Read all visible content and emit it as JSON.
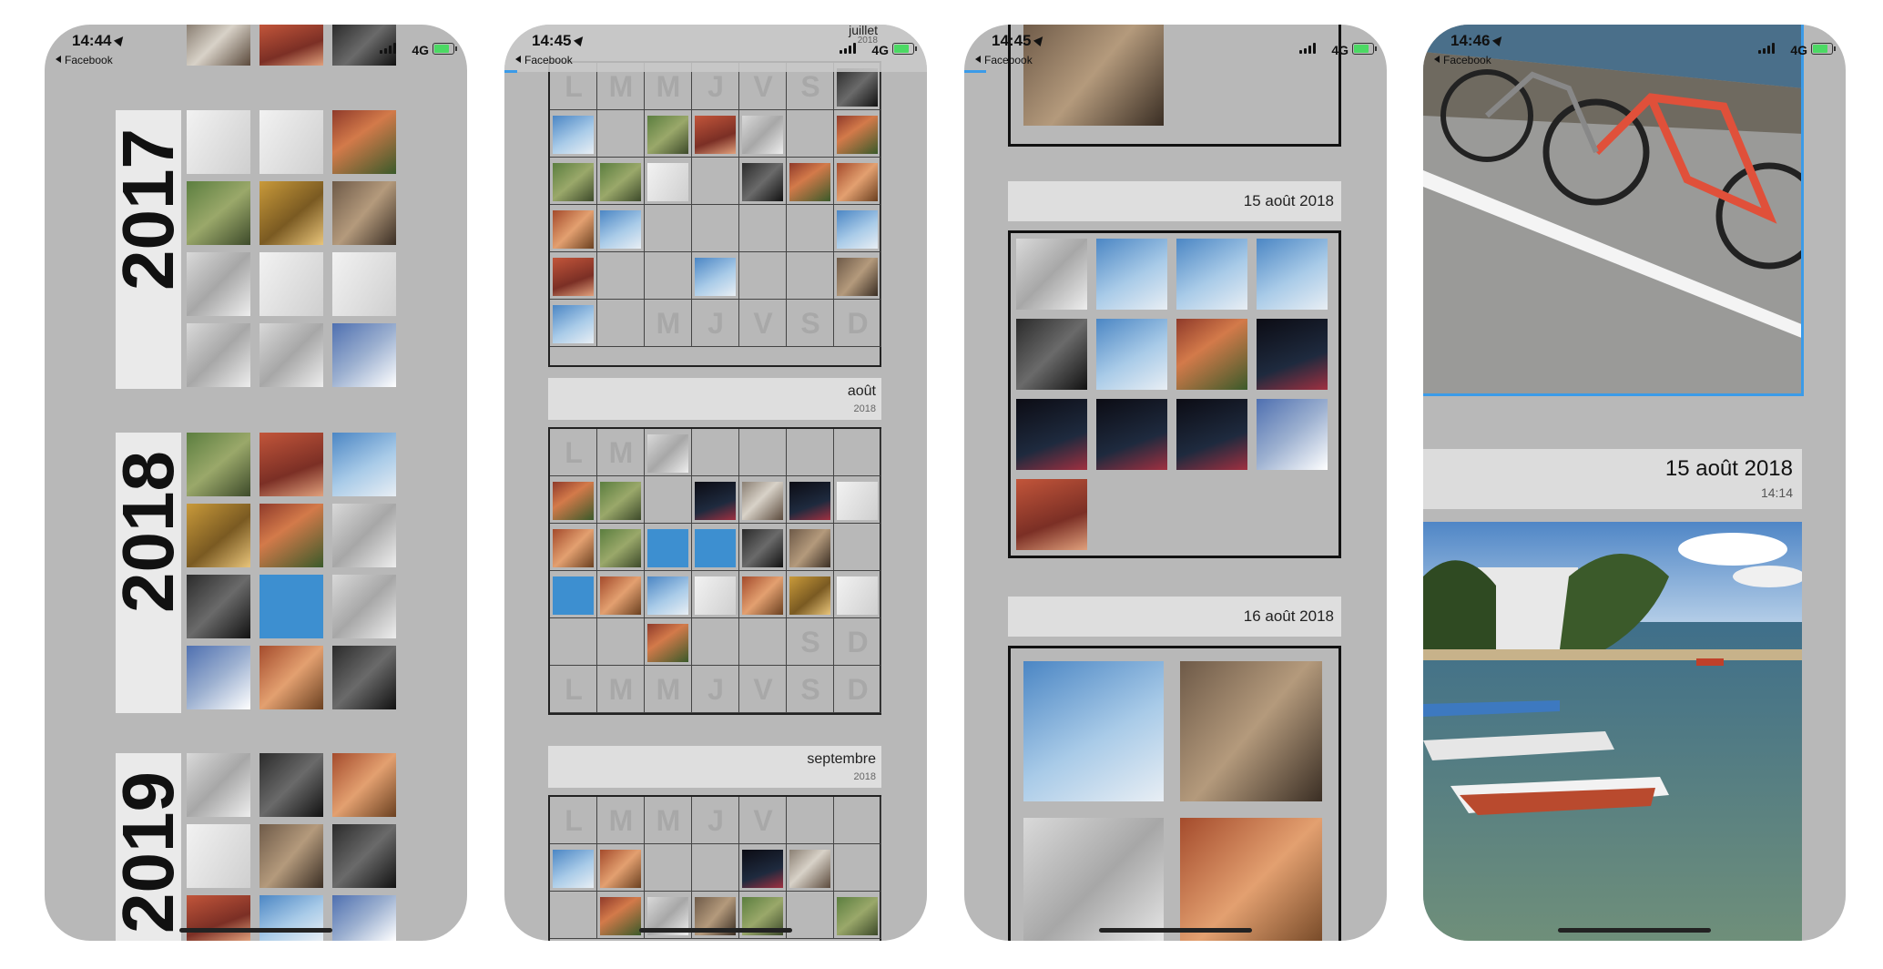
{
  "status_bars": [
    {
      "time": "14:44",
      "back_label": "Facebook",
      "network": "4G"
    },
    {
      "time": "14:45",
      "back_label": "Facebook",
      "network": "4G"
    },
    {
      "time": "14:45",
      "back_label": "Facebook",
      "network": "4G"
    },
    {
      "time": "14:46",
      "back_label": "Facebook",
      "network": "4G"
    }
  ],
  "years_view": {
    "years": [
      "2017",
      "2018",
      "2019"
    ]
  },
  "months_view": {
    "weekday_letters": [
      "L",
      "M",
      "M",
      "J",
      "V",
      "S",
      "D"
    ],
    "months": [
      {
        "name": "juillet",
        "year": "2018"
      },
      {
        "name": "août",
        "year": "2018"
      },
      {
        "name": "septembre",
        "year": "2018"
      }
    ]
  },
  "days_view": {
    "days": [
      "15 août 2018",
      "16 août 2018"
    ]
  },
  "photo_view": {
    "date": "15 août 2018",
    "time": "14:14"
  }
}
